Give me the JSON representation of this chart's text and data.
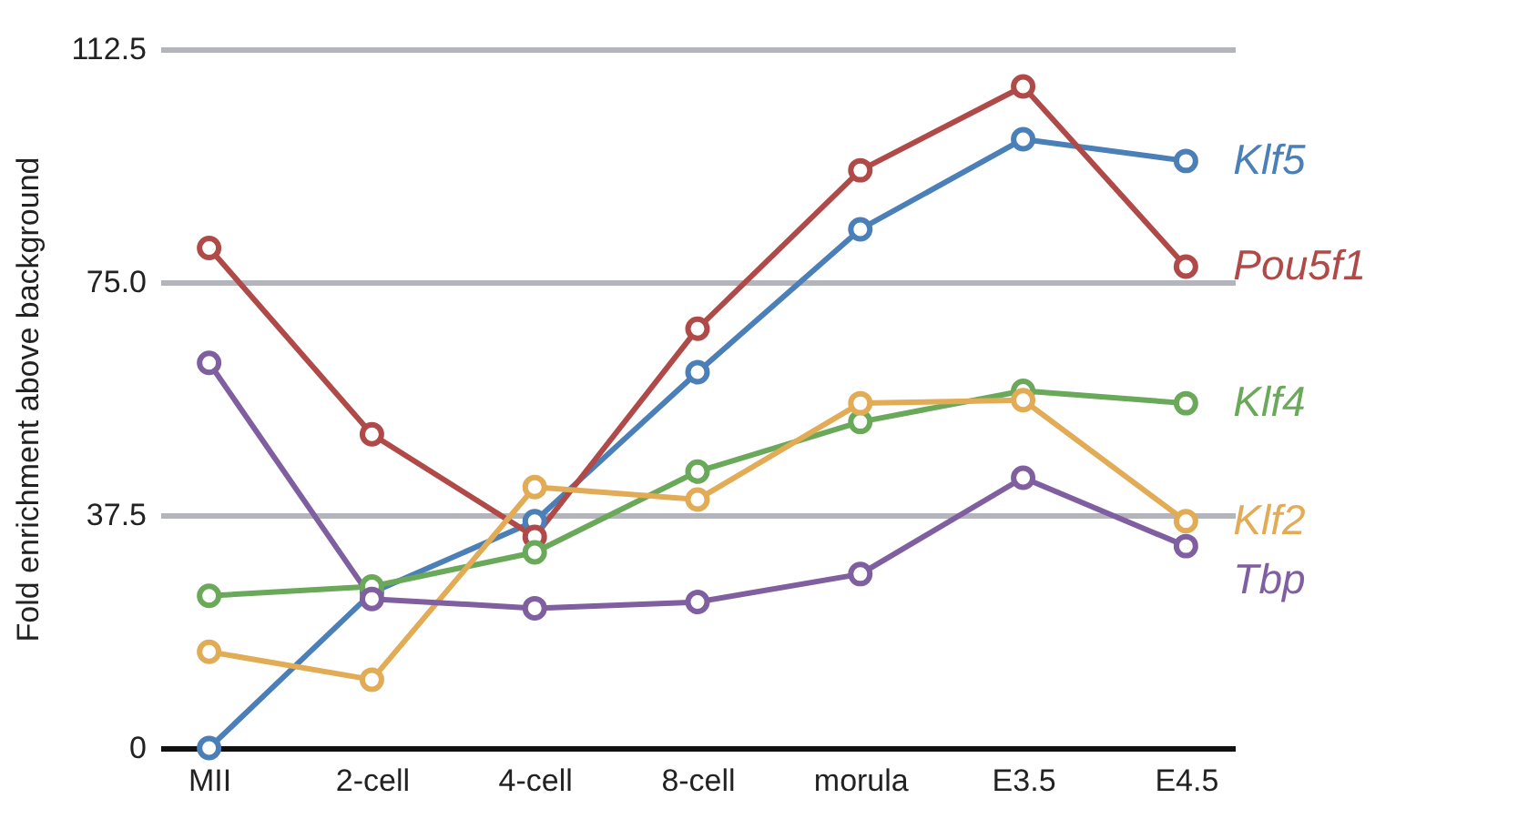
{
  "chart_data": {
    "type": "line",
    "ylabel": "Fold enrichment above background",
    "categories": [
      "MII",
      "2-cell",
      "4-cell",
      "8-cell",
      "morula",
      "E3.5",
      "E4.5"
    ],
    "series": [
      {
        "name": "Klf5",
        "color": "#4a7fb8",
        "values": [
          0,
          25,
          36.5,
          60.5,
          83.5,
          98,
          94.5
        ]
      },
      {
        "name": "Pou5f1",
        "color": "#b04a48",
        "values": [
          80.5,
          50.5,
          34,
          67.5,
          93,
          106.5,
          77.5
        ]
      },
      {
        "name": "Klf4",
        "color": "#6aa85a",
        "values": [
          24.5,
          26,
          31.5,
          44.5,
          52.5,
          57.5,
          55.5
        ]
      },
      {
        "name": "Klf2",
        "color": "#e2ab55",
        "values": [
          15.5,
          11,
          42,
          40,
          55.5,
          56,
          36.5
        ]
      },
      {
        "name": "Tbp",
        "color": "#7f5fa0",
        "values": [
          62,
          24,
          22.5,
          23.5,
          28,
          43.5,
          32.5
        ]
      }
    ],
    "ylim": [
      0,
      112.5
    ],
    "yticks": [
      0,
      37.5,
      {
        "value": 75,
        "label": "75.0"
      },
      112.5
    ],
    "grid": "y",
    "legend": false,
    "marker": "circle",
    "line_style": "solid"
  }
}
